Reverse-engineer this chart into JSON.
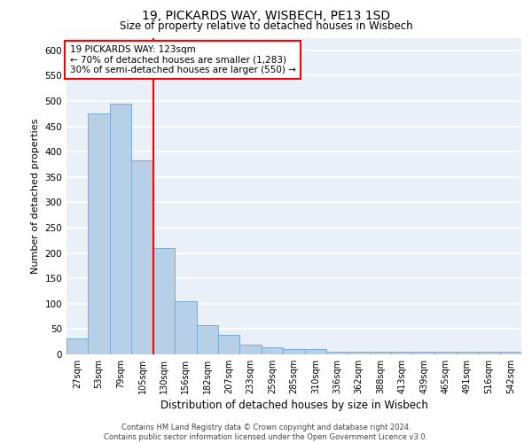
{
  "title_line1": "19, PICKARDS WAY, WISBECH, PE13 1SD",
  "title_line2": "Size of property relative to detached houses in Wisbech",
  "xlabel": "Distribution of detached houses by size in Wisbech",
  "ylabel": "Number of detached properties",
  "footnote1": "Contains HM Land Registry data © Crown copyright and database right 2024.",
  "footnote2": "Contains public sector information licensed under the Open Government Licence v3.0.",
  "annotation_title": "19 PICKARDS WAY: 123sqm",
  "annotation_line2": "← 70% of detached houses are smaller (1,283)",
  "annotation_line3": "30% of semi-detached houses are larger (550) →",
  "bar_color": "#b8cfe8",
  "bar_edge_color": "#7aadd4",
  "ref_line_color": "red",
  "ref_line_x": 3.5,
  "categories": [
    "27sqm",
    "53sqm",
    "79sqm",
    "105sqm",
    "130sqm",
    "156sqm",
    "182sqm",
    "207sqm",
    "233sqm",
    "259sqm",
    "285sqm",
    "310sqm",
    "336sqm",
    "362sqm",
    "388sqm",
    "413sqm",
    "439sqm",
    "465sqm",
    "491sqm",
    "516sqm",
    "542sqm"
  ],
  "values": [
    32,
    475,
    495,
    382,
    210,
    105,
    57,
    38,
    20,
    14,
    11,
    10,
    5,
    5,
    5,
    5,
    5,
    5,
    5,
    5,
    5
  ],
  "ylim": [
    0,
    625
  ],
  "yticks": [
    0,
    50,
    100,
    150,
    200,
    250,
    300,
    350,
    400,
    450,
    500,
    550,
    600
  ],
  "background_color": "#eaf0f8",
  "grid_color": "#ffffff",
  "annotation_box_color": "#ffffff",
  "annotation_box_edge": "red",
  "title1_fontsize": 10,
  "title2_fontsize": 8.5,
  "ylabel_fontsize": 8,
  "xlabel_fontsize": 8.5,
  "tick_fontsize": 7,
  "footnote_fontsize": 6.0,
  "annot_fontsize": 7.5
}
